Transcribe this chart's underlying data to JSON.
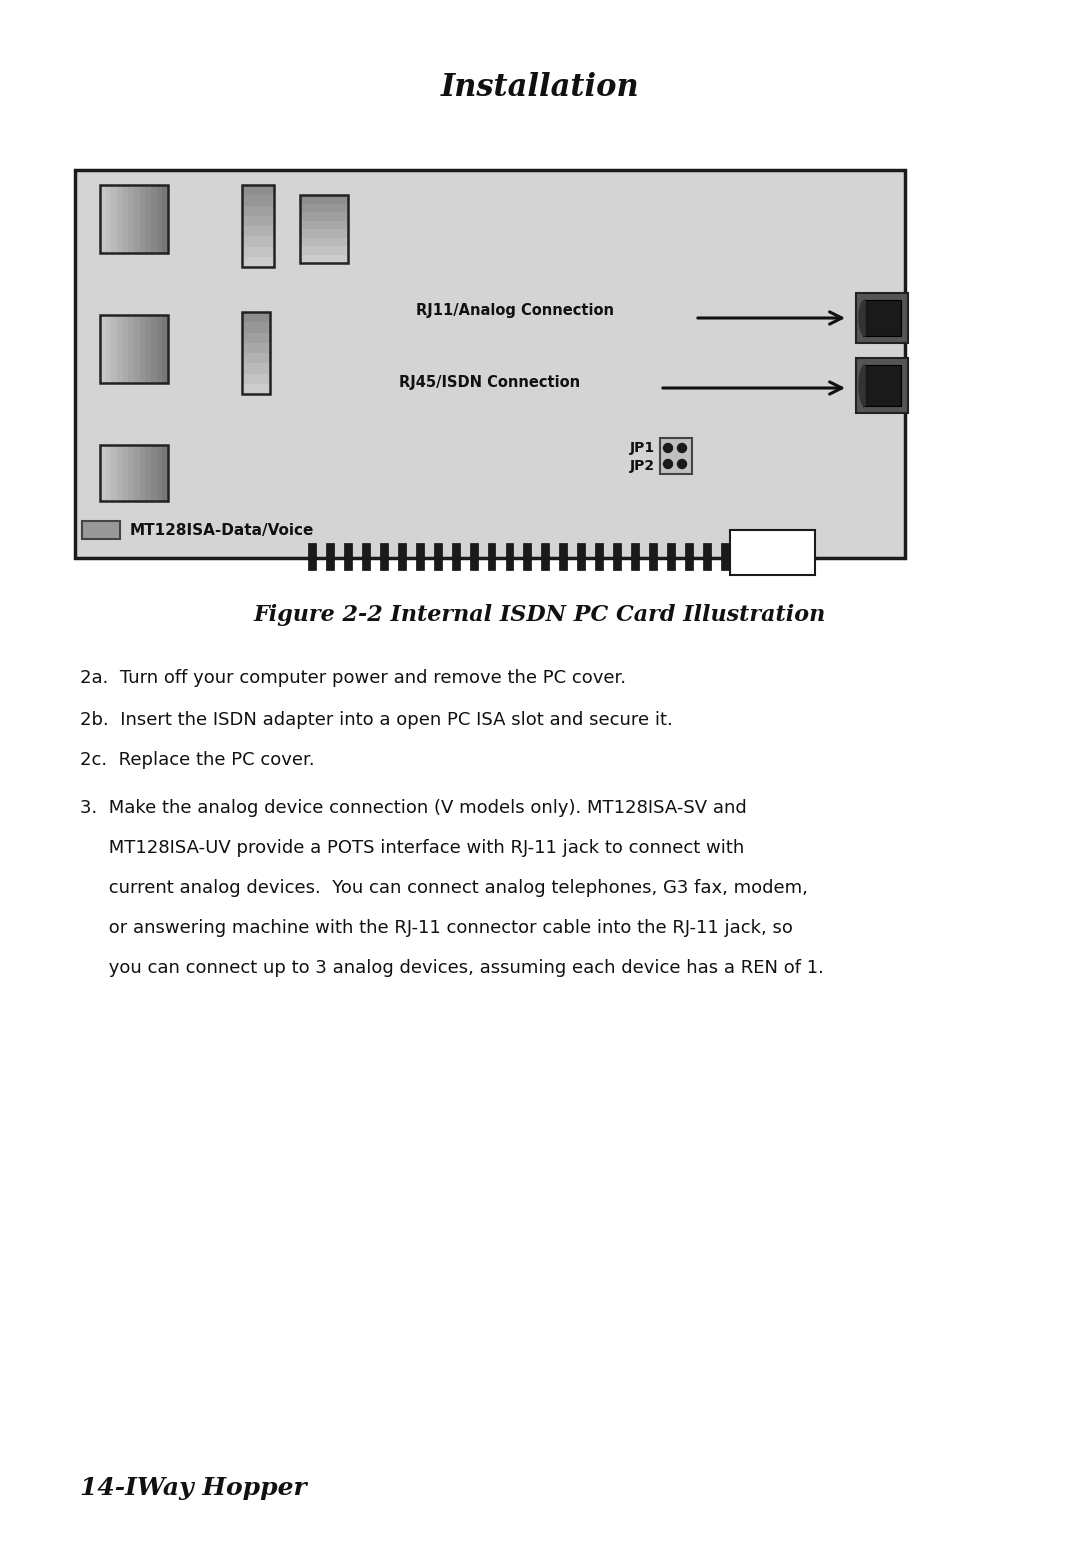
{
  "title": "Installation",
  "figure_caption": "Figure 2-2 Internal ISDN PC Card Illustration",
  "item_2a": "2a.  Turn off your computer power and remove the PC cover.",
  "item_2b": "2b.  Insert the ISDN adapter into a open PC ISA slot and secure it.",
  "item_2c": "2c.  Replace the PC cover.",
  "item_3_lines": [
    "3.  Make the analog device connection (V models only). MT128ISA-SV and",
    "     MT128ISA-UV provide a POTS interface with RJ-11 jack to connect with",
    "     current analog devices.  You can connect analog telephones, G3 fax, modem,",
    "     or answering machine with the RJ-11 connector cable into the RJ-11 jack, so",
    "     you can connect up to 3 analog devices, assuming each device has a REN of 1."
  ],
  "footer": "14-IWay Hopper",
  "label_rj11": "RJ11/Analog Connection",
  "label_rj45": "RJ45/ISDN Connection",
  "label_jp1": "JP1",
  "label_jp2": "JP2",
  "label_card": "MT128ISA-Data/Voice",
  "bg_color": "#ffffff",
  "card_bg": "#d4d4d4",
  "card_border": "#1a1a1a",
  "comp_light": "#aaaaaa",
  "comp_dark": "#666666",
  "comp_border": "#222222",
  "connector_fill": "#555555",
  "connector_inner": "#1a1a1a",
  "arrow_color": "#111111",
  "text_color": "#111111",
  "title_fontsize": 22,
  "caption_fontsize": 16,
  "body_fontsize": 13,
  "footer_fontsize": 18,
  "card_label_fontsize": 11,
  "card_annot_fontsize": 10.5,
  "card_jp_fontsize": 10
}
